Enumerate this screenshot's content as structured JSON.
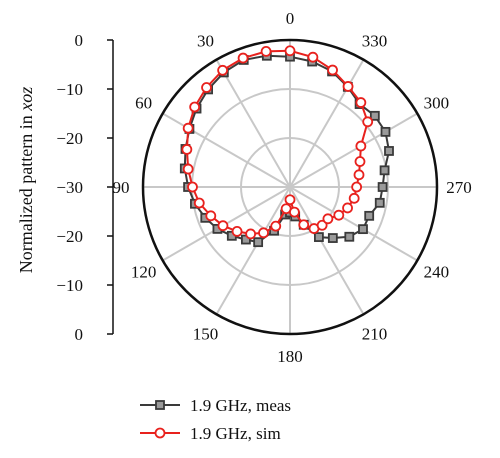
{
  "chart_data": {
    "type": "polar-line",
    "ylabel_prefix": "Normalized pattern in ",
    "ylabel_italic": "xoz",
    "radial_axis": {
      "ticks": [
        0,
        -10,
        -20,
        -30
      ],
      "left_scale_labels": [
        "0",
        "−10",
        "−20",
        "−30",
        "−20",
        "−10",
        "0"
      ]
    },
    "angular_axis": {
      "direction": "counterclockwise",
      "zero_location": "top",
      "labels": [
        "0",
        "30",
        "60",
        "90",
        "120",
        "150",
        "180",
        "210",
        "240",
        "270",
        "300",
        "330"
      ]
    },
    "grid": true,
    "legend_position": "bottom",
    "series": [
      {
        "name": "1.9 GHz, meas",
        "color": "#3a3a3a",
        "marker": "square",
        "angles": [
          0,
          10,
          20,
          30,
          40,
          50,
          60,
          70,
          80,
          90,
          100,
          110,
          120,
          130,
          140,
          150,
          160,
          170,
          180,
          190,
          200,
          210,
          220,
          230,
          240,
          250,
          260,
          270,
          280,
          290,
          300,
          310,
          320,
          330,
          340,
          350
        ],
        "values": [
          -3.4,
          -2.8,
          -2.4,
          -3.0,
          -4.0,
          -5.1,
          -6.3,
          -7.3,
          -8.2,
          -9.2,
          -10.3,
          -11.6,
          -12.9,
          -14.5,
          -16.0,
          -17.0,
          -20.5,
          -24.3,
          -24.8,
          -23.9,
          -21.8,
          -18.2,
          -16.4,
          -14.2,
          -12.8,
          -12.8,
          -11.4,
          -11.1,
          -10.4,
          -8.5,
          -7.5,
          -7.4,
          -7.9,
          -6.4,
          -4.9,
          -4.0
        ]
      },
      {
        "name": "1.9 GHz, sim",
        "color": "#e8211d",
        "marker": "circle",
        "angles": [
          0,
          10,
          20,
          30,
          40,
          50,
          60,
          70,
          80,
          90,
          100,
          110,
          120,
          130,
          140,
          150,
          160,
          170,
          180,
          190,
          200,
          210,
          220,
          230,
          240,
          250,
          260,
          270,
          280,
          290,
          300,
          310,
          320,
          330,
          340,
          350
        ],
        "values": [
          -2.2,
          -1.9,
          -2.0,
          -2.5,
          -3.5,
          -4.6,
          -6.0,
          -7.6,
          -8.9,
          -10.1,
          -11.2,
          -12.8,
          -14.2,
          -15.9,
          -17.5,
          -19.2,
          -21.5,
          -25.5,
          -27.4,
          -24.8,
          -21.8,
          -20.2,
          -19.8,
          -19.9,
          -18.5,
          -17.5,
          -16.7,
          -16.4,
          -15.7,
          -14.8,
          -13.3,
          -9.3,
          -7.5,
          -6.3,
          -4.6,
          -3.1
        ]
      }
    ]
  }
}
